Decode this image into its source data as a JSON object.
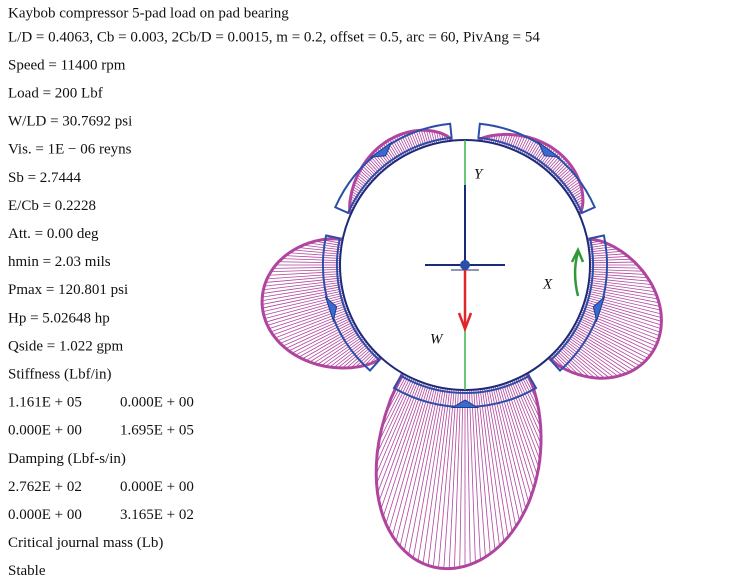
{
  "title": "Kaybob compressor 5-pad load on pad bearing",
  "subtitle": "L/D = 0.4063, Cb = 0.003, 2Cb/D = 0.0015, m = 0.2, offset = 0.5, arc = 60, PivAng = 54",
  "lines": [
    "Speed = 11400 rpm",
    "Load = 200 Lbf",
    "W/LD = 30.7692 psi",
    "Vis. = 1E − 06 reyns",
    "Sb = 2.7444",
    "E/Cb = 0.2228",
    "Att. = 0.00 deg",
    "hmin = 2.03 mils",
    "Pmax = 120.801 psi",
    "Hp = 5.02648 hp",
    "Qside = 1.022 gpm",
    "Stiffness (Lbf/in)",
    [
      "1.161E + 05",
      "0.000E + 00"
    ],
    [
      "0.000E + 00",
      "1.695E + 05"
    ],
    "Damping (Lbf-s/in)",
    [
      "2.762E + 02",
      "0.000E + 00"
    ],
    [
      "0.000E + 00",
      "3.165E + 02"
    ],
    "Critical journal mass (Lb)",
    "Stable"
  ],
  "diagram": {
    "labels": {
      "y": "Y",
      "x": "X",
      "w": "W"
    }
  }
}
